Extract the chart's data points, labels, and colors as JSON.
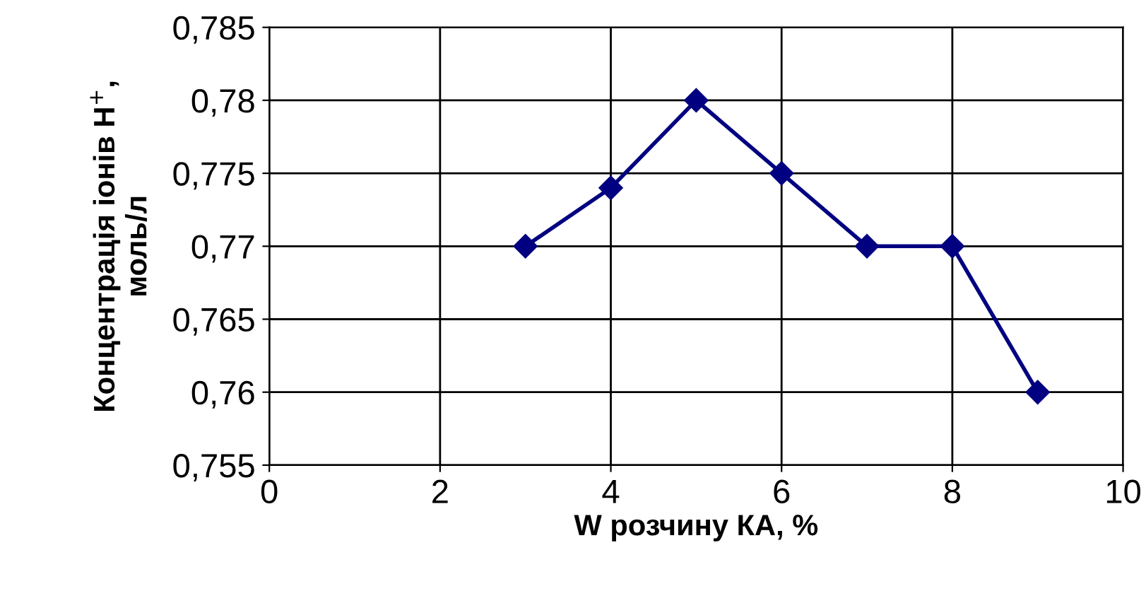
{
  "chart_data": {
    "type": "line",
    "xlabel": "W розчину КА, %",
    "ylabel": "Концентрація іонів H$^{+}$,\nмоль/л",
    "x": [
      3,
      4,
      5,
      6,
      7,
      8,
      9
    ],
    "series": [
      {
        "color": "#000080",
        "values": [
          0.77,
          0.774,
          0.78,
          0.775,
          0.77,
          0.77,
          0.76
        ]
      }
    ],
    "xlim": [
      0,
      10
    ],
    "xticks": [
      0,
      2,
      4,
      6,
      8,
      10
    ],
    "ylim": [
      0.755,
      0.785
    ],
    "yticks": [
      {
        "value": 0.755,
        "label": "0,755"
      },
      {
        "value": 0.76,
        "label": "0,76"
      },
      {
        "value": 0.765,
        "label": "0,765"
      },
      {
        "value": 0.77,
        "label": "0,77"
      },
      {
        "value": 0.775,
        "label": "0,775"
      },
      {
        "value": 0.78,
        "label": "0,78"
      },
      {
        "value": 0.785,
        "label": "0,785"
      }
    ],
    "grid": true,
    "marker": "diamond",
    "line_style": "solid"
  }
}
